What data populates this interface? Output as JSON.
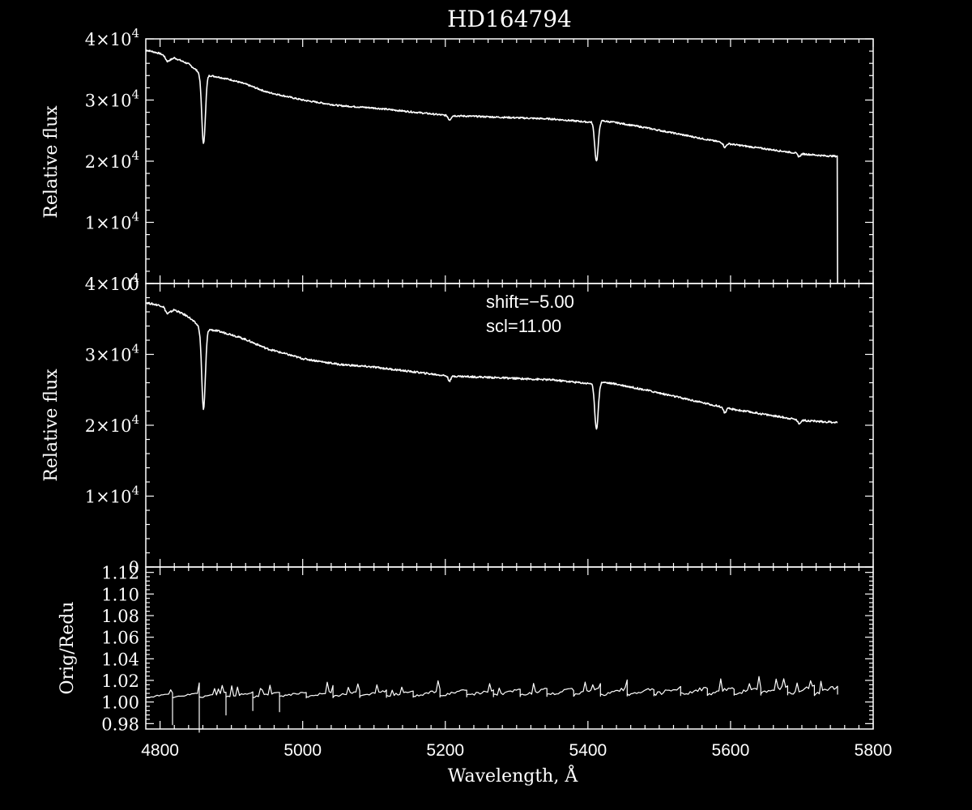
{
  "chart_data": [
    {
      "type": "line",
      "title": "HD164794",
      "xlabel": "",
      "ylabel": "Relative flux",
      "xlim": [
        4780,
        5800
      ],
      "ylim": [
        0,
        40000
      ],
      "yticks": [
        {
          "value": 0,
          "label": "0"
        },
        {
          "value": 10000,
          "mant": "1×10",
          "exp": "4"
        },
        {
          "value": 20000,
          "mant": "2×10",
          "exp": "4"
        },
        {
          "value": 30000,
          "mant": "3×10",
          "exp": "4"
        },
        {
          "value": 40000,
          "mant": "4×10",
          "exp": "4"
        }
      ],
      "lines": [
        {
          "center": 4861,
          "depth": 11500,
          "width": 2.5
        },
        {
          "center": 5206,
          "depth": 700,
          "width": 2.0
        },
        {
          "center": 5412,
          "depth": 6500,
          "width": 2.5
        },
        {
          "center": 5592,
          "depth": 700,
          "width": 2.0
        },
        {
          "center": 5696,
          "depth": 500,
          "width": 2.0
        }
      ],
      "series": [
        {
          "x": [
            4780,
            4800,
            4805,
            4810,
            4820,
            4840,
            4855,
            4870,
            4880,
            4900,
            4920,
            4950,
            5000,
            5050,
            5100,
            5150,
            5200,
            5220,
            5250,
            5300,
            5350,
            5390,
            5400,
            5420,
            5440,
            5480,
            5520,
            5560,
            5600,
            5650,
            5700,
            5730,
            5750
          ],
          "y": [
            38200,
            37600,
            37300,
            36300,
            36900,
            35900,
            34500,
            34000,
            33800,
            33300,
            32600,
            31300,
            30000,
            29100,
            28700,
            28100,
            27500,
            27400,
            27300,
            27100,
            26900,
            26500,
            26400,
            26600,
            26300,
            25500,
            24600,
            23700,
            22800,
            22000,
            21200,
            20900,
            20800
          ]
        }
      ],
      "drop_to_zero_at": 5750
    },
    {
      "type": "line",
      "title": "",
      "xlabel": "",
      "ylabel": "Relative flux",
      "xlim": [
        4780,
        5800
      ],
      "ylim": [
        0,
        40000
      ],
      "annotations": [
        "shift=−5.00",
        "scl=11.00"
      ],
      "yticks": [
        {
          "value": 0,
          "label": "0"
        },
        {
          "value": 10000,
          "mant": "1×10",
          "exp": "4"
        },
        {
          "value": 20000,
          "mant": "2×10",
          "exp": "4"
        },
        {
          "value": 30000,
          "mant": "3×10",
          "exp": "4"
        },
        {
          "value": 40000,
          "mant": "4×10",
          "exp": "4"
        }
      ],
      "lines": [
        {
          "center": 4861,
          "depth": 11500,
          "width": 2.5
        },
        {
          "center": 5206,
          "depth": 700,
          "width": 2.0
        },
        {
          "center": 5412,
          "depth": 6500,
          "width": 2.5
        },
        {
          "center": 5592,
          "depth": 700,
          "width": 2.0
        },
        {
          "center": 5696,
          "depth": 500,
          "width": 2.0
        }
      ],
      "series": [
        {
          "x": [
            4780,
            4800,
            4805,
            4810,
            4820,
            4840,
            4855,
            4870,
            4880,
            4900,
            4920,
            4950,
            5000,
            5050,
            5100,
            5150,
            5200,
            5220,
            5250,
            5300,
            5350,
            5390,
            5400,
            5420,
            5440,
            5480,
            5520,
            5560,
            5600,
            5650,
            5700,
            5730,
            5750
          ],
          "y": [
            37300,
            36900,
            36700,
            35700,
            36300,
            35300,
            33900,
            33500,
            33300,
            32800,
            32100,
            30800,
            29400,
            28600,
            28200,
            27600,
            27000,
            26900,
            26800,
            26600,
            26400,
            26000,
            25900,
            26100,
            25800,
            25000,
            24100,
            23200,
            22300,
            21500,
            20700,
            20500,
            20400
          ]
        }
      ]
    },
    {
      "type": "line",
      "title": "",
      "xlabel": "Wavelength, Å",
      "ylabel": "Orig/Redu",
      "xlim": [
        4780,
        5800
      ],
      "ylim": [
        0.975,
        1.125
      ],
      "yticks": [
        {
          "value": 0.98,
          "label": "0.98"
        },
        {
          "value": 1.0,
          "label": "1.00"
        },
        {
          "value": 1.02,
          "label": "1.02"
        },
        {
          "value": 1.04,
          "label": "1.04"
        },
        {
          "value": 1.06,
          "label": "1.06"
        },
        {
          "value": 1.08,
          "label": "1.08"
        },
        {
          "value": 1.1,
          "label": "1.10"
        },
        {
          "value": 1.12,
          "label": "1.12"
        }
      ],
      "xticks": [
        {
          "value": 4800,
          "label": "4800"
        },
        {
          "value": 5000,
          "label": "5000"
        },
        {
          "value": 5200,
          "label": "5200"
        },
        {
          "value": 5400,
          "label": "5400"
        },
        {
          "value": 5600,
          "label": "5600"
        },
        {
          "value": 5800,
          "label": "5800"
        }
      ],
      "segments": {
        "start": 4780,
        "end": 5750,
        "period": 37.5,
        "low_start": 1.004,
        "low_end": 1.008,
        "high_start": 1.008,
        "high_end": 1.015,
        "deep_dips": [
          {
            "x": 4808,
            "y": 0.979
          },
          {
            "x": 4845,
            "y": 0.972
          },
          {
            "x": 4883,
            "y": 0.988
          },
          {
            "x": 4920,
            "y": 0.992
          },
          {
            "x": 4958,
            "y": 0.991
          }
        ]
      }
    }
  ]
}
